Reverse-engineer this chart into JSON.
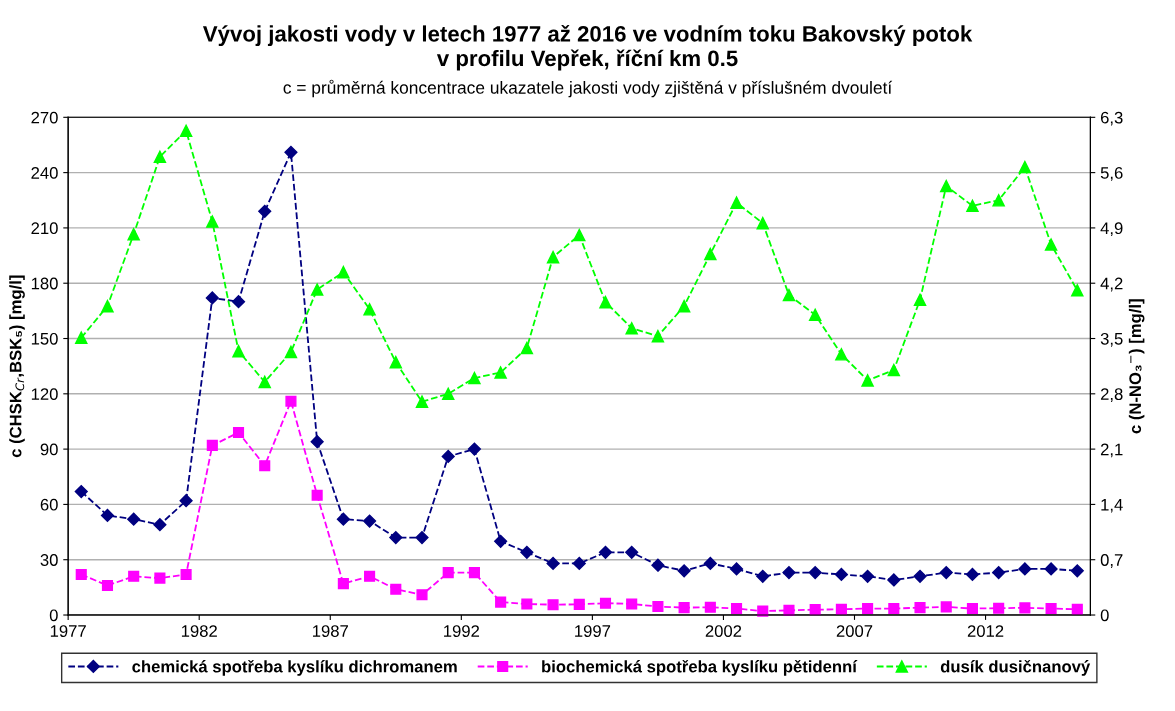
{
  "chart_data": {
    "type": "line",
    "title": "Vývoj jakosti vody v letech 1977 až 2016 ve vodním toku Bakovský potok\nv profilu Vepřek, říční km 0.5",
    "subtitle": "c = průměrná koncentrace ukazatele jakosti vody zjištěná v příslušném dvouletí",
    "ylabel": "c (CHSK$_{Cr}$,BSK₅) [mg/l]",
    "y2label": "c (N-NO₃$^{−}$) [mg/l]",
    "x": [
      1977.5,
      1978.5,
      1979.5,
      1980.5,
      1981.5,
      1982.5,
      1983.5,
      1984.5,
      1985.5,
      1986.5,
      1987.5,
      1988.5,
      1989.5,
      1990.5,
      1991.5,
      1992.5,
      1993.5,
      1994.5,
      1995.5,
      1996.5,
      1997.5,
      1998.5,
      1999.5,
      2000.5,
      2001.5,
      2002.5,
      2003.5,
      2004.5,
      2005.5,
      2006.5,
      2007.5,
      2008.5,
      2009.5,
      2010.5,
      2011.5,
      2012.5,
      2013.5,
      2014.5,
      2015.5
    ],
    "series": [
      {
        "name": "chemická spotřeba kyslíku dichromanem",
        "color": "#000080",
        "marker": "diamond",
        "values": [
          67,
          54,
          52,
          49,
          62,
          172,
          170,
          219,
          251,
          94,
          52,
          51,
          42,
          42,
          86,
          90,
          40,
          34,
          28,
          28,
          34,
          34,
          27,
          24,
          28,
          25,
          21,
          23,
          23,
          22,
          21,
          19,
          21,
          23,
          22,
          23,
          25,
          25,
          24
        ]
      },
      {
        "name": "biochemická spotřeba kyslíku pětidenní",
        "color": "#ff00ff",
        "marker": "square",
        "values": [
          22,
          16,
          21,
          20,
          22,
          92,
          99,
          81,
          116,
          65,
          17,
          21,
          14,
          11,
          23,
          23,
          7,
          6,
          5.6,
          5.8,
          6.4,
          6,
          4.6,
          4,
          4.2,
          3.5,
          2.1,
          2.5,
          2.9,
          3.1,
          3.5,
          3.5,
          4,
          4.4,
          3.5,
          3.7,
          3.9,
          3.5,
          3.1
        ]
      },
      {
        "name": "dusík dusičnanový",
        "color": "#00ff00",
        "marker": "triangle",
        "axis": "y2",
        "values": [
          3.51,
          3.91,
          4.82,
          5.8,
          6.13,
          4.98,
          3.34,
          2.95,
          3.33,
          4.12,
          4.34,
          3.87,
          3.2,
          2.7,
          2.8,
          3.0,
          3.07,
          3.38,
          4.53,
          4.81,
          3.96,
          3.63,
          3.53,
          3.91,
          4.57,
          5.22,
          4.96,
          4.05,
          3.8,
          3.3,
          2.97,
          3.1,
          3.99,
          5.43,
          5.18,
          5.25,
          5.67,
          4.69,
          4.11
        ]
      }
    ],
    "xlim": [
      1977,
      2016
    ],
    "xticks": [
      1977,
      1982,
      1987,
      1992,
      1997,
      2002,
      2007,
      2012
    ],
    "ylim": [
      0,
      270
    ],
    "yticks": [
      0,
      30,
      60,
      90,
      120,
      150,
      180,
      210,
      240,
      270
    ],
    "y2lim": [
      0,
      6.3
    ],
    "y2ticks": [
      {
        "value": 0,
        "label": "0"
      },
      {
        "value": 0.7,
        "label": "0,7"
      },
      {
        "value": 1.4,
        "label": "1,4"
      },
      {
        "value": 2.1,
        "label": "2,1"
      },
      {
        "value": 2.8,
        "label": "2,8"
      },
      {
        "value": 3.5,
        "label": "3,5"
      },
      {
        "value": 4.2,
        "label": "4,2"
      },
      {
        "value": 4.9,
        "label": "4,9"
      },
      {
        "value": 5.6,
        "label": "5,6"
      },
      {
        "value": 6.3,
        "label": "6,3"
      }
    ],
    "grid": "y",
    "legend": "bottom",
    "line_style": "dashed"
  }
}
